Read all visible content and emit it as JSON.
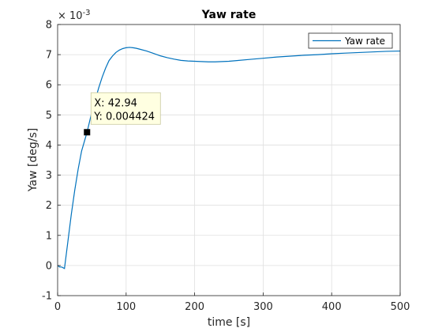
{
  "chart_data": {
    "type": "line",
    "title": "Yaw rate",
    "xlabel": "time [s]",
    "ylabel": "Yaw [deg/s]",
    "y_exponent_label": "× 10",
    "y_exponent_power": "-3",
    "y_scale_factor": 0.001,
    "xlim": [
      0,
      500
    ],
    "ylim": [
      -1,
      8
    ],
    "x_ticks": [
      "0",
      "100",
      "200",
      "300",
      "400",
      "500"
    ],
    "y_ticks": [
      "-1",
      "0",
      "1",
      "2",
      "3",
      "4",
      "5",
      "6",
      "7",
      "8"
    ],
    "grid": true,
    "legend_position": "top-right",
    "series": [
      {
        "name": "Yaw rate",
        "color": "#0072bd",
        "x": [
          0,
          3,
          6,
          10,
          15,
          20,
          25,
          30,
          35,
          42.94,
          50,
          55,
          60,
          65,
          70,
          75,
          80,
          85,
          90,
          95,
          100,
          105,
          110,
          115,
          120,
          130,
          140,
          150,
          160,
          170,
          180,
          190,
          200,
          210,
          220,
          230,
          240,
          250,
          260,
          280,
          300,
          320,
          340,
          360,
          380,
          400,
          420,
          440,
          460,
          480,
          500
        ],
        "y": [
          0,
          -0.05,
          -0.05,
          -0.1,
          0.8,
          1.7,
          2.5,
          3.2,
          3.8,
          4.424,
          5.1,
          5.5,
          5.9,
          6.25,
          6.55,
          6.8,
          6.95,
          7.07,
          7.15,
          7.2,
          7.23,
          7.24,
          7.23,
          7.21,
          7.18,
          7.12,
          7.04,
          6.96,
          6.9,
          6.85,
          6.81,
          6.79,
          6.78,
          6.77,
          6.76,
          6.76,
          6.77,
          6.78,
          6.8,
          6.84,
          6.88,
          6.92,
          6.95,
          6.98,
          7.0,
          7.03,
          7.05,
          7.07,
          7.09,
          7.11,
          7.12
        ]
      }
    ],
    "datatip": {
      "x": 42.94,
      "y": 4.424,
      "label_x": "X: 42.94",
      "label_y": "Y: 0.004424"
    }
  }
}
